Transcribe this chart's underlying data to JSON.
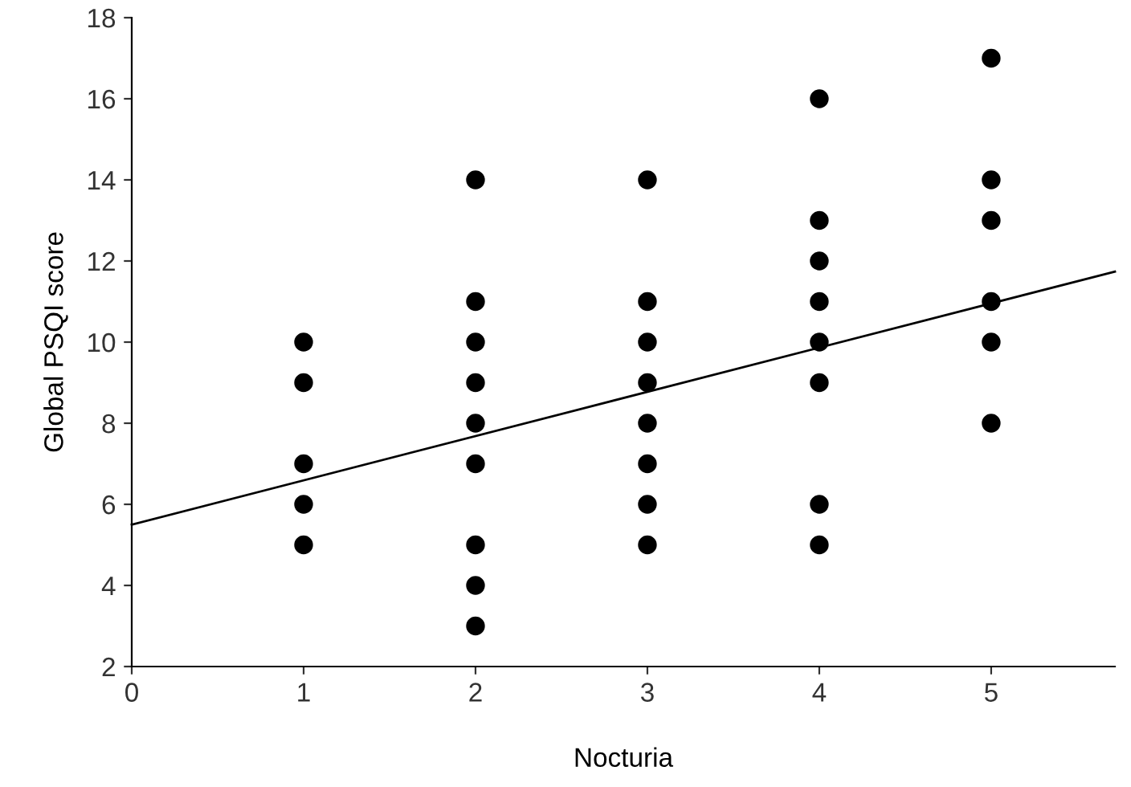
{
  "chart_data": {
    "type": "scatter",
    "xlabel": "Nocturia",
    "ylabel": "Global PSQI score",
    "xlim": [
      0,
      5.72
    ],
    "xticks": [
      0,
      1,
      2,
      3,
      4,
      5
    ],
    "ylim": [
      2,
      18
    ],
    "yticks": [
      2,
      4,
      6,
      8,
      10,
      12,
      14,
      16,
      18
    ],
    "grid": false,
    "series": [
      {
        "color": "#000000",
        "marker": "circle",
        "x": [
          1,
          1,
          1,
          1,
          1,
          2,
          2,
          2,
          2,
          2,
          2,
          2,
          2,
          2,
          3,
          3,
          3,
          3,
          3,
          3,
          3,
          3,
          4,
          4,
          4,
          4,
          4,
          4,
          4,
          4,
          5,
          5,
          5,
          5,
          5,
          5
        ],
        "values": [
          10,
          9,
          7,
          6,
          5,
          14,
          11,
          10,
          9,
          8,
          7,
          5,
          4,
          3,
          14,
          11,
          10,
          9,
          8,
          7,
          6,
          5,
          16,
          13,
          12,
          11,
          10,
          9,
          6,
          5,
          17,
          14,
          13,
          11,
          10,
          8
        ]
      },
      {
        "type": "line",
        "marker": "none",
        "color": "#000000",
        "x": [
          0,
          5.72
        ],
        "values": [
          5.5,
          11.74
        ]
      }
    ]
  }
}
